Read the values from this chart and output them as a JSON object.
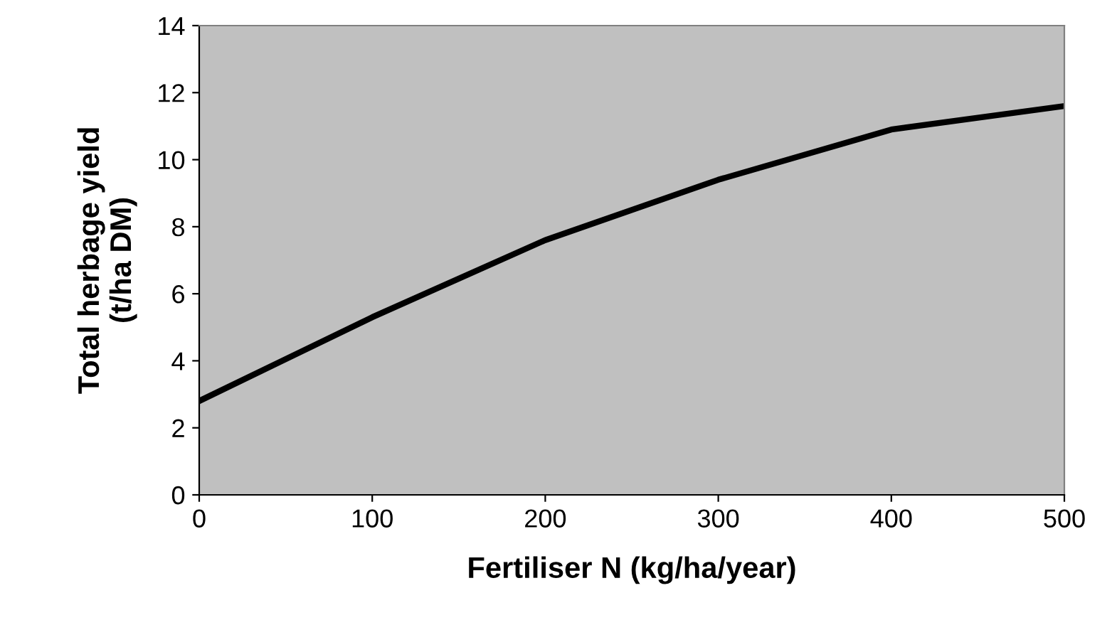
{
  "chart_data": {
    "type": "line",
    "xlabel": "Fertiliser N (kg/ha/year)",
    "ylabel": "Total herbage yield\n(t/ha DM)",
    "x": [
      0,
      100,
      200,
      300,
      400,
      500
    ],
    "series": [
      {
        "color": "#000000",
        "values": [
          2.8,
          5.3,
          7.6,
          9.4,
          10.9,
          11.6
        ]
      }
    ],
    "xlim": [
      0,
      500
    ],
    "xticks": [
      0,
      100,
      200,
      300,
      400,
      500
    ],
    "ylim": [
      0,
      14
    ],
    "yticks": [
      0,
      2,
      4,
      6,
      8,
      10,
      12,
      14
    ],
    "grid": false,
    "legend": false,
    "marker": "none",
    "line_style": "solid"
  }
}
